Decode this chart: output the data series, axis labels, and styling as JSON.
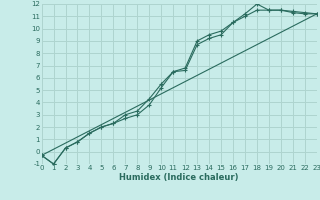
{
  "bg_color": "#c8ece9",
  "grid_color": "#aed4cf",
  "line_color": "#2a6b5e",
  "xlabel": "Humidex (Indice chaleur)",
  "xlim": [
    0,
    23
  ],
  "ylim": [
    -1,
    12
  ],
  "xticks": [
    0,
    1,
    2,
    3,
    4,
    5,
    6,
    7,
    8,
    9,
    10,
    11,
    12,
    13,
    14,
    15,
    16,
    17,
    18,
    19,
    20,
    21,
    22,
    23
  ],
  "yticks": [
    -1,
    0,
    1,
    2,
    3,
    4,
    5,
    6,
    7,
    8,
    9,
    10,
    11,
    12
  ],
  "series1_x": [
    0,
    1,
    2,
    3,
    4,
    5,
    6,
    7,
    8,
    9,
    10,
    11,
    12,
    13,
    14,
    15,
    16,
    17,
    18,
    19,
    20,
    21,
    22,
    23
  ],
  "series1_y": [
    -0.3,
    -1.0,
    0.3,
    0.8,
    1.5,
    2.0,
    2.3,
    2.7,
    3.0,
    3.8,
    5.2,
    6.5,
    6.6,
    8.7,
    9.2,
    9.5,
    10.5,
    11.2,
    12.0,
    11.5,
    11.5,
    11.4,
    11.3,
    11.2
  ],
  "series2_x": [
    0,
    1,
    2,
    3,
    4,
    5,
    6,
    7,
    8,
    9,
    10,
    11,
    12,
    13,
    14,
    15,
    16,
    17,
    18,
    19,
    20,
    21,
    22,
    23
  ],
  "series2_y": [
    -0.3,
    -1.0,
    0.3,
    0.8,
    1.5,
    2.0,
    2.3,
    3.0,
    3.3,
    4.3,
    5.5,
    6.5,
    6.8,
    9.0,
    9.5,
    9.8,
    10.5,
    11.0,
    11.5,
    11.5,
    11.5,
    11.3,
    11.2,
    11.2
  ],
  "series3_x": [
    0,
    23
  ],
  "series3_y": [
    -0.3,
    11.2
  ]
}
